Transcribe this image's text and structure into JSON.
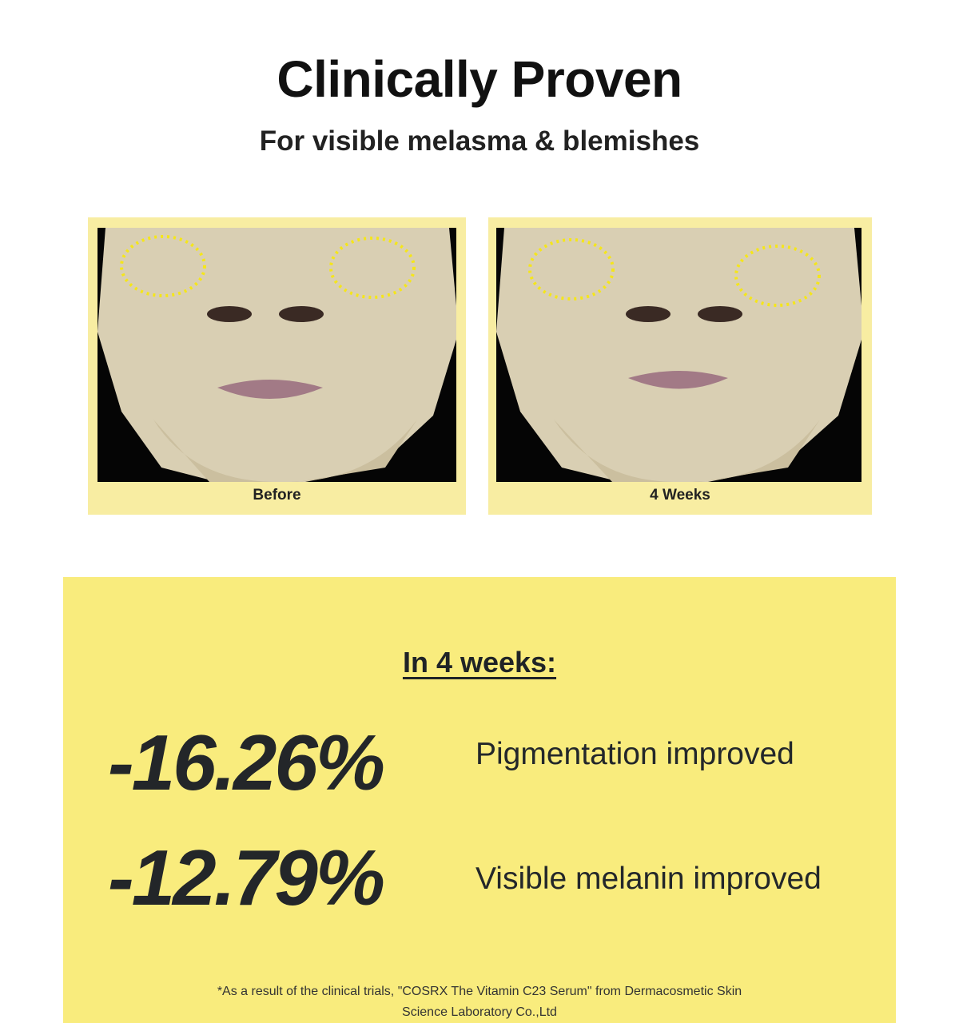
{
  "header": {
    "title": "Clinically Proven",
    "subtitle": "For visible melasma & blemishes"
  },
  "comparison": {
    "before_label": "Before",
    "after_label": "4 Weeks",
    "highlight_color": "#f5e61a",
    "card_color": "#f8eda2"
  },
  "results": {
    "heading": "In 4 weeks:",
    "items": [
      {
        "value": "-16.26%",
        "label": "Pigmentation improved"
      },
      {
        "value": "-12.79%",
        "label": "Visible melanin improved"
      }
    ],
    "background_color": "#f9ec7d"
  },
  "footnote": {
    "line1": "*As a result of the clinical trials, \"COSRX The Vitamin C23 Serum\" from Dermacosmetic Skin",
    "line2": "Science Laboratory Co.,Ltd"
  }
}
